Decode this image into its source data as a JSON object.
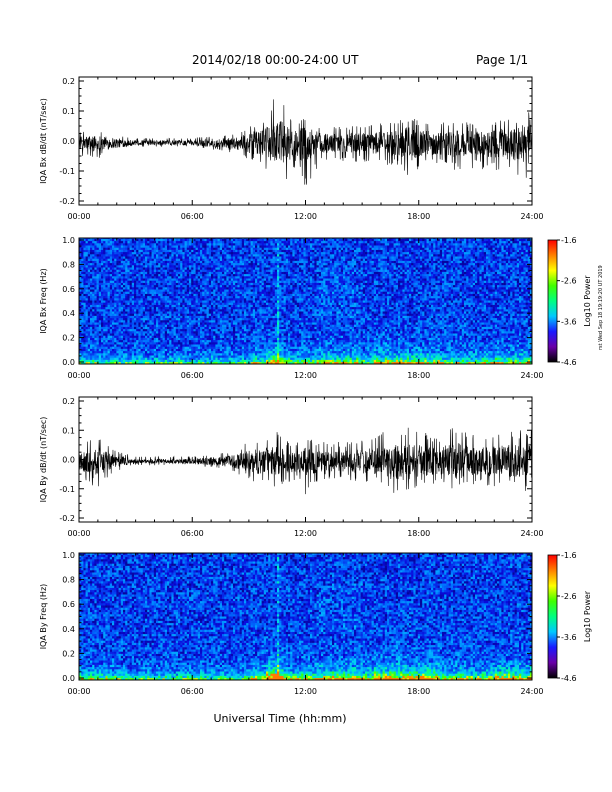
{
  "header": {
    "title": "2014/02/18  00:00-24:00 UT",
    "page": "Page 1/1"
  },
  "stamp": "rst Wed Sep 18 19:19:20 UT 2019",
  "colors": {
    "trace": "#000000",
    "axes": "#000000",
    "colorbar": [
      "#000000",
      "#6a00a8",
      "#1a1aff",
      "#00c8ff",
      "#00ff80",
      "#40ff00",
      "#ffff00",
      "#ff8000",
      "#ff0000"
    ]
  },
  "chart_data": [
    {
      "type": "line",
      "ylabel": "IQA Bx dB/dt (nT/sec)",
      "ylim": [
        -0.2,
        0.2
      ],
      "yticks": [
        "-0.2",
        "-0.1",
        "0.0",
        "0.1",
        "0.2"
      ],
      "xlim": [
        0,
        24
      ],
      "xticks": [
        "00:00",
        "06:00",
        "12:00",
        "18:00",
        "24:00"
      ],
      "envelope": {
        "x": [
          0,
          1,
          2,
          3,
          4,
          5,
          6,
          7,
          8,
          9,
          10,
          10.5,
          11,
          11.5,
          12,
          12.5,
          13,
          14,
          15,
          16,
          17,
          17.5,
          18,
          19,
          20,
          21,
          22,
          23,
          24
        ],
        "upper": [
          0.03,
          0.04,
          0.02,
          0.01,
          0.01,
          0.01,
          0.01,
          0.02,
          0.02,
          0.05,
          0.09,
          0.17,
          0.1,
          0.06,
          0.08,
          0.06,
          0.05,
          0.05,
          0.05,
          0.06,
          0.07,
          0.08,
          0.07,
          0.06,
          0.07,
          0.06,
          0.07,
          0.08,
          0.1
        ],
        "lower": [
          -0.05,
          -0.06,
          -0.04,
          -0.02,
          -0.02,
          -0.02,
          -0.02,
          -0.03,
          -0.04,
          -0.07,
          -0.1,
          -0.12,
          -0.13,
          -0.09,
          -0.16,
          -0.1,
          -0.07,
          -0.07,
          -0.07,
          -0.08,
          -0.09,
          -0.14,
          -0.09,
          -0.08,
          -0.1,
          -0.09,
          -0.1,
          -0.12,
          -0.17
        ]
      }
    },
    {
      "type": "heatmap",
      "ylabel": "IQA Bx Freq (Hz)",
      "ylim": [
        0,
        1
      ],
      "yticks": [
        "0.0",
        "0.2",
        "0.4",
        "0.6",
        "0.8",
        "1.0"
      ],
      "xlim": [
        0,
        24
      ],
      "xticks": [
        "00:00",
        "06:00",
        "12:00",
        "18:00",
        "24:00"
      ],
      "colorbar": {
        "label": "Log10 Power",
        "min": -4.6,
        "max": -1.6,
        "ticks": [
          "-1.6",
          "-2.6",
          "-3.6",
          "-4.6"
        ]
      }
    },
    {
      "type": "line",
      "ylabel": "IQA By dB/dt (nT/sec)",
      "ylim": [
        -0.2,
        0.2
      ],
      "yticks": [
        "-0.2",
        "-0.1",
        "0.0",
        "0.1",
        "0.2"
      ],
      "xlim": [
        0,
        24
      ],
      "xticks": [
        "00:00",
        "06:00",
        "12:00",
        "18:00",
        "24:00"
      ],
      "envelope": {
        "x": [
          0,
          1,
          2,
          3,
          4,
          5,
          6,
          7,
          8,
          9,
          10,
          10.5,
          11,
          11.5,
          12,
          12.5,
          13,
          14,
          15,
          16,
          17,
          17.5,
          18,
          19,
          20,
          21,
          22,
          23,
          24
        ],
        "upper": [
          0.05,
          0.08,
          0.03,
          0.01,
          0.01,
          0.01,
          0.01,
          0.02,
          0.03,
          0.06,
          0.08,
          0.1,
          0.07,
          0.06,
          0.08,
          0.07,
          0.06,
          0.06,
          0.07,
          0.09,
          0.12,
          0.11,
          0.1,
          0.08,
          0.12,
          0.09,
          0.1,
          0.1,
          0.11
        ],
        "lower": [
          -0.06,
          -0.1,
          -0.04,
          -0.02,
          -0.02,
          -0.02,
          -0.02,
          -0.03,
          -0.04,
          -0.07,
          -0.1,
          -0.09,
          -0.08,
          -0.07,
          -0.12,
          -0.08,
          -0.07,
          -0.07,
          -0.08,
          -0.09,
          -0.14,
          -0.12,
          -0.1,
          -0.09,
          -0.11,
          -0.09,
          -0.1,
          -0.1,
          -0.12
        ]
      }
    },
    {
      "type": "heatmap",
      "ylabel": "IQA By Freq (Hz)",
      "ylim": [
        0,
        1
      ],
      "yticks": [
        "0.0",
        "0.2",
        "0.4",
        "0.6",
        "0.8",
        "1.0"
      ],
      "xlim": [
        0,
        24
      ],
      "xticks": [
        "00:00",
        "06:00",
        "12:00",
        "18:00",
        "24:00"
      ],
      "xlabel": "Universal Time (hh:mm)",
      "colorbar": {
        "label": "Log10 Power",
        "min": -4.6,
        "max": -1.6,
        "ticks": [
          "-1.6",
          "-2.6",
          "-3.6",
          "-4.6"
        ]
      }
    }
  ]
}
